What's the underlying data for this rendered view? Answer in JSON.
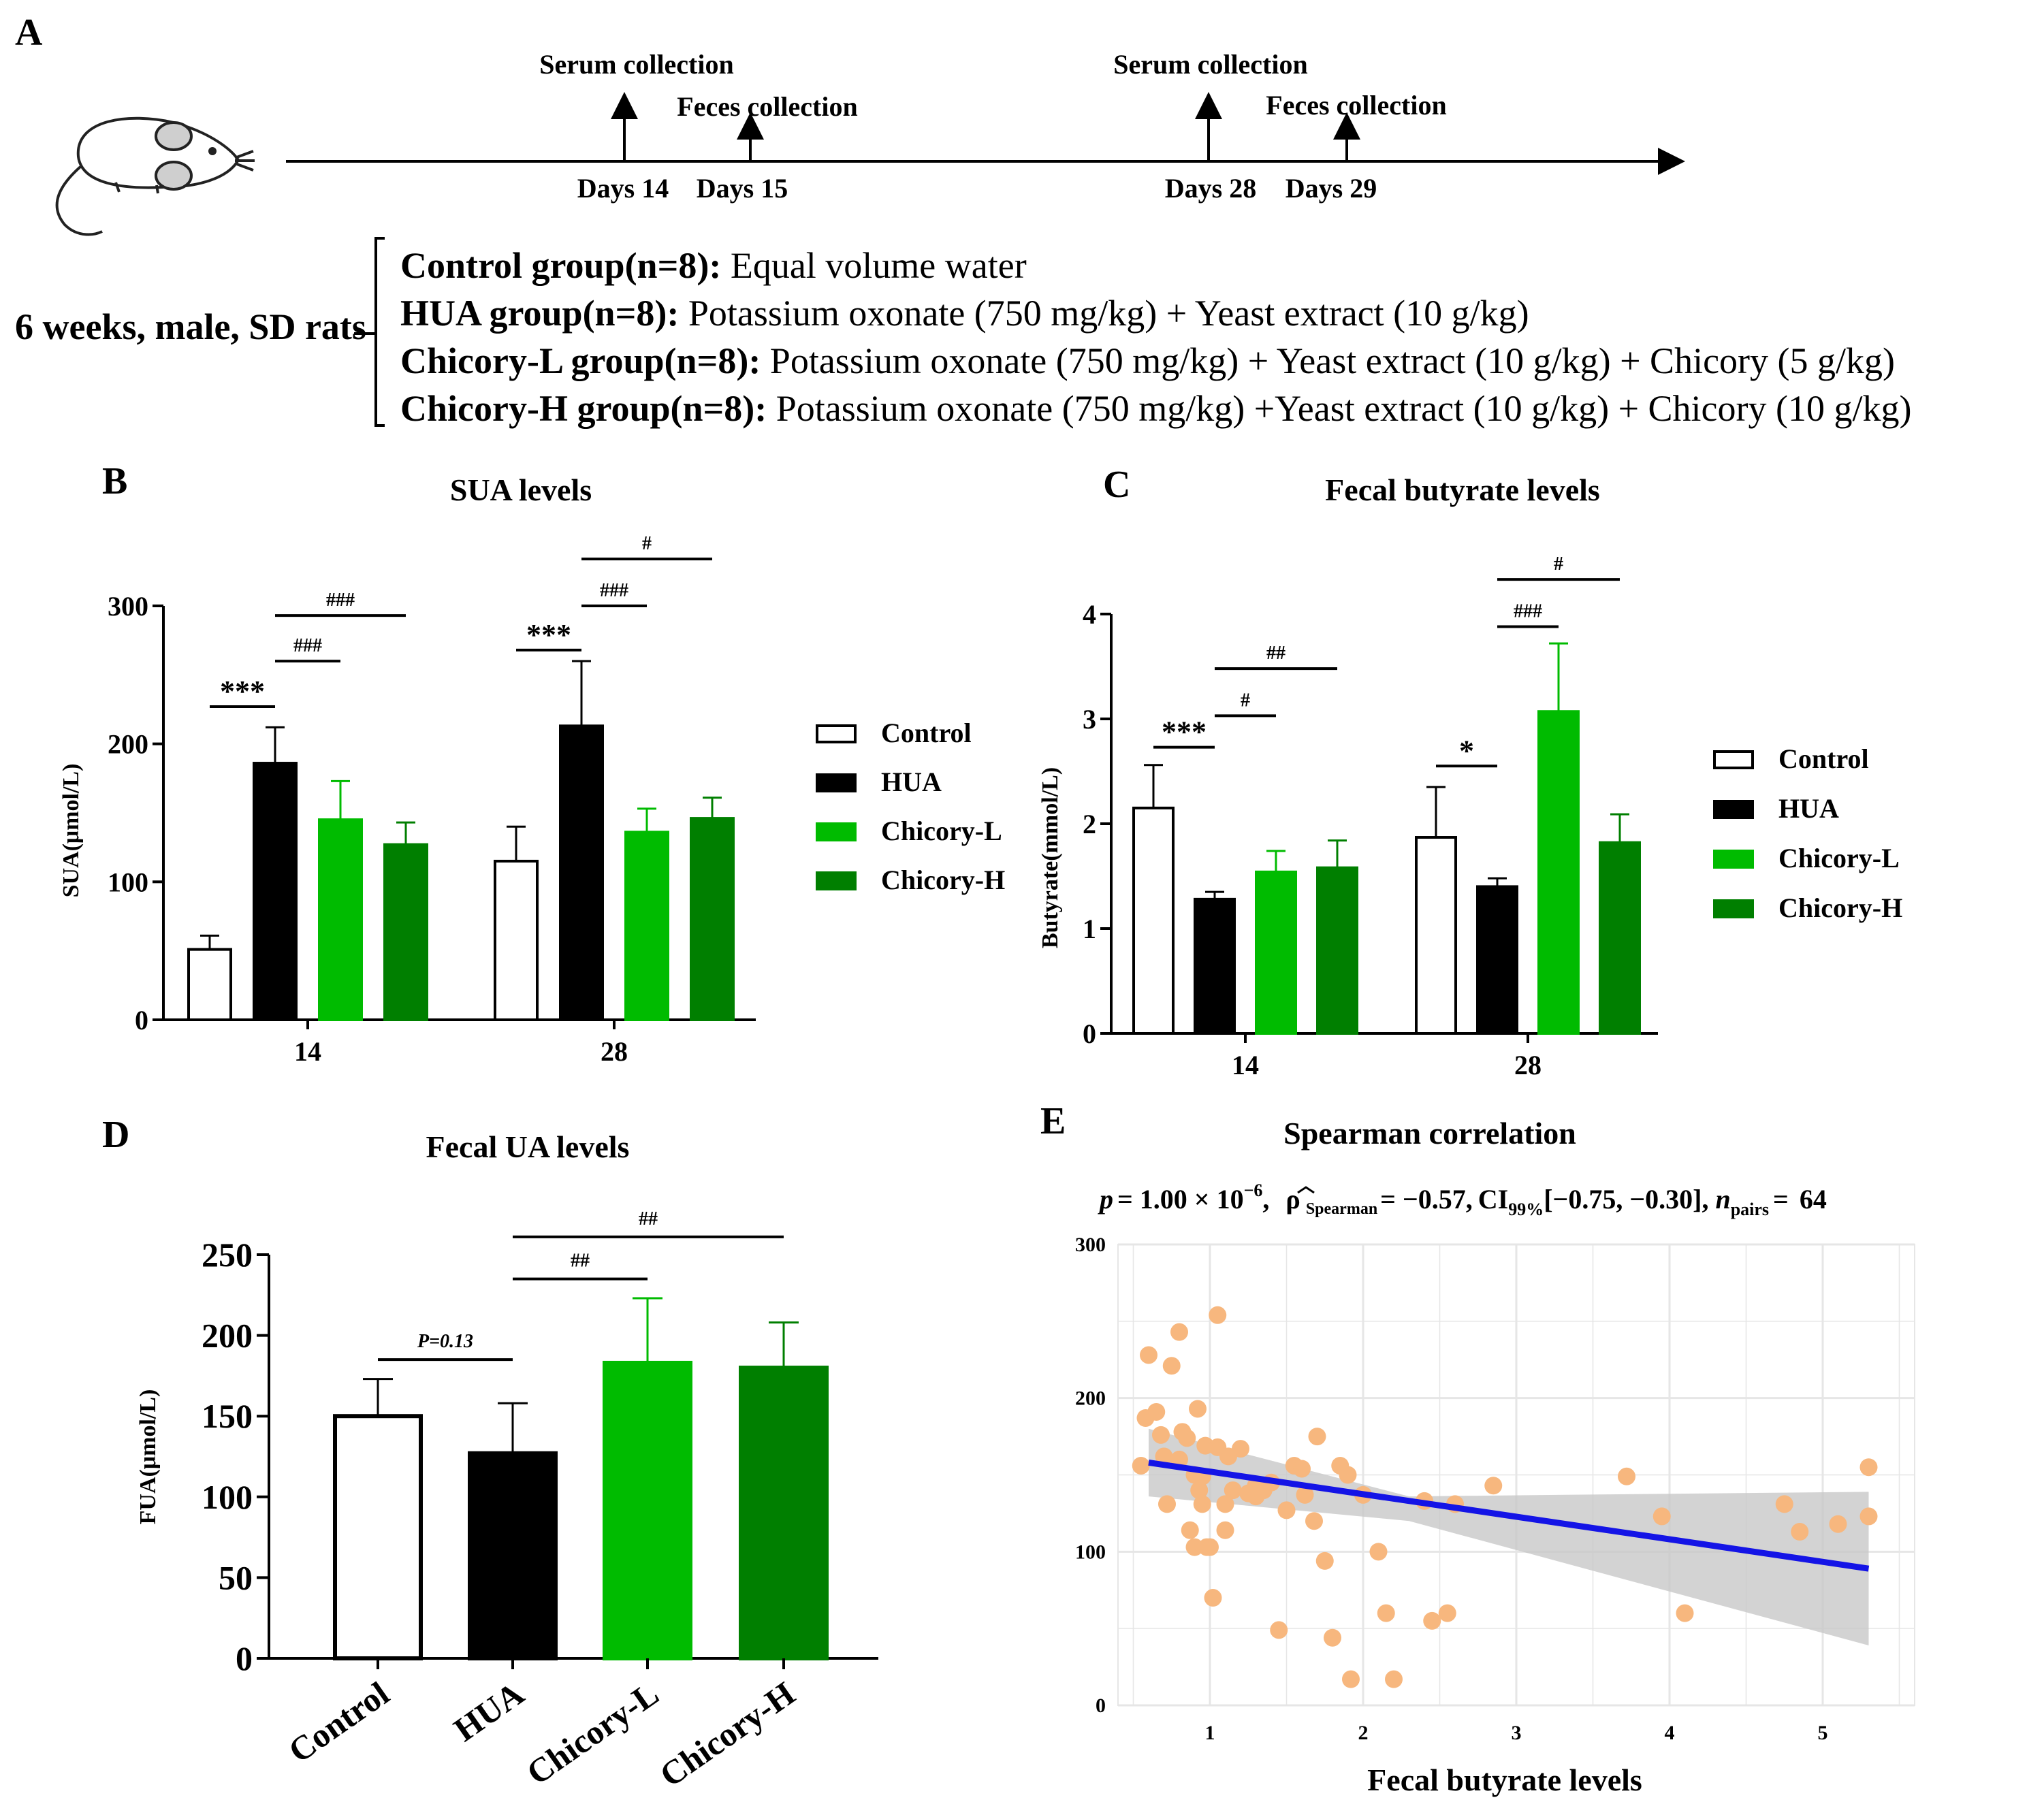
{
  "panelA": {
    "label": "A",
    "timeline": {
      "serum1": "Serum collection",
      "feces1": "Feces collection",
      "serum2": "Serum collection",
      "feces2": "Feces collection",
      "day14": "Days 14",
      "day15": "Days 15",
      "day28": "Days 28",
      "day29": "Days 29"
    },
    "animals": "6 weeks, male, SD rats",
    "groups": [
      {
        "name": "Control group(n=8):",
        "desc": " Equal volume water"
      },
      {
        "name": "HUA group(n=8):",
        "desc": " Potassium oxonate (750 mg/kg) + Yeast extract (10 g/kg)"
      },
      {
        "name": "Chicory-L group(n=8):",
        "desc": " Potassium oxonate (750 mg/kg) + Yeast extract (10 g/kg) + Chicory (5 g/kg)"
      },
      {
        "name": "Chicory-H group(n=8):",
        "desc": " Potassium oxonate (750 mg/kg) +Yeast extract (10 g/kg) + Chicory (10 g/kg)"
      }
    ]
  },
  "colors": {
    "Control": "#ffffff",
    "HUA": "#000000",
    "Chicory-L": "#00bb00",
    "Chicory-H": "#007f00",
    "scatter_point": "#f7b77e",
    "fit_line": "#1414e6",
    "ci_band": "#c8c8c8",
    "grid": "#e6e6e6"
  },
  "chart_data": [
    {
      "id": "B",
      "label": "B",
      "type": "bar",
      "title": "SUA levels",
      "ylabel": "SUA(μmol/L)",
      "ylim": [
        0,
        300
      ],
      "yticks": [
        "0",
        "100",
        "200",
        "300"
      ],
      "categories": [
        "14",
        "28"
      ],
      "series": [
        {
          "name": "Control",
          "values": [
            51,
            115
          ],
          "errors": [
            10,
            25
          ]
        },
        {
          "name": "HUA",
          "values": [
            186,
            213
          ],
          "errors": [
            26,
            47
          ]
        },
        {
          "name": "Chicory-L",
          "values": [
            145,
            136
          ],
          "errors": [
            28,
            17
          ]
        },
        {
          "name": "Chicory-H",
          "values": [
            127,
            146
          ],
          "errors": [
            16,
            15
          ]
        }
      ],
      "legend": [
        "Control",
        "HUA",
        "Chicory-L",
        "Chicory-H"
      ],
      "annotations": [
        {
          "text": "***",
          "from": [
            0,
            0
          ],
          "to": [
            0,
            1
          ],
          "y": 227
        },
        {
          "text": "###",
          "from": [
            0,
            1
          ],
          "to": [
            0,
            2
          ],
          "y": 260
        },
        {
          "text": "###",
          "from": [
            0,
            1
          ],
          "to": [
            0,
            3
          ],
          "y": 293
        },
        {
          "text": "***",
          "from": [
            1,
            0
          ],
          "to": [
            1,
            1
          ],
          "y": 268
        },
        {
          "text": "###",
          "from": [
            1,
            1
          ],
          "to": [
            1,
            2
          ],
          "y": 300
        },
        {
          "text": "#",
          "from": [
            1,
            1
          ],
          "to": [
            1,
            3
          ],
          "y": 334
        }
      ]
    },
    {
      "id": "C",
      "label": "C",
      "type": "bar",
      "title": "Fecal butyrate levels",
      "ylabel": "Butyrate(mmol/L)",
      "ylim": [
        0,
        4
      ],
      "yticks": [
        "0",
        "1",
        "2",
        "3",
        "4"
      ],
      "categories": [
        "14",
        "28"
      ],
      "series": [
        {
          "name": "Control",
          "values": [
            2.15,
            1.87
          ],
          "errors": [
            0.41,
            0.48
          ]
        },
        {
          "name": "HUA",
          "values": [
            1.28,
            1.4
          ],
          "errors": [
            0.07,
            0.08
          ]
        },
        {
          "name": "Chicory-L",
          "values": [
            1.54,
            3.07
          ],
          "errors": [
            0.2,
            0.65
          ]
        },
        {
          "name": "Chicory-H",
          "values": [
            1.58,
            1.82
          ],
          "errors": [
            0.26,
            0.27
          ]
        }
      ],
      "legend": [
        "Control",
        "HUA",
        "Chicory-L",
        "Chicory-H"
      ],
      "annotations": [
        {
          "text": "***",
          "from": [
            0,
            0
          ],
          "to": [
            0,
            1
          ],
          "y": 2.73
        },
        {
          "text": "#",
          "from": [
            0,
            1
          ],
          "to": [
            0,
            2
          ],
          "y": 3.03
        },
        {
          "text": "##",
          "from": [
            0,
            1
          ],
          "to": [
            0,
            3
          ],
          "y": 3.48
        },
        {
          "text": "*",
          "from": [
            1,
            0
          ],
          "to": [
            1,
            1
          ],
          "y": 2.55
        },
        {
          "text": "###",
          "from": [
            1,
            1
          ],
          "to": [
            1,
            2
          ],
          "y": 3.88
        },
        {
          "text": "#",
          "from": [
            1,
            1
          ],
          "to": [
            1,
            3
          ],
          "y": 4.33
        }
      ]
    },
    {
      "id": "D",
      "label": "D",
      "type": "bar",
      "title": "Fecal UA levels",
      "ylabel": "FUA(μmol/L)",
      "ylim": [
        0,
        250
      ],
      "yticks": [
        "0",
        "50",
        "100",
        "150",
        "200",
        "250"
      ],
      "categories": [
        "Control",
        "HUA",
        "Chicory-L",
        "Chicory-H"
      ],
      "values": [
        150,
        127,
        183,
        180
      ],
      "errors": [
        23,
        31,
        40,
        28
      ],
      "annotations": [
        {
          "text": "P=0.13",
          "from": 0,
          "to": 1,
          "y": 185
        },
        {
          "text": "##",
          "from": 1,
          "to": 2,
          "y": 235
        },
        {
          "text": "##",
          "from": 1,
          "to": 3,
          "y": 261
        }
      ]
    },
    {
      "id": "E",
      "label": "E",
      "type": "scatter",
      "title": "Spearman correlation",
      "xlabel": "Fecal butyrate levels",
      "stats": {
        "p": "p",
        "p_eq": "= 1.00 × 10",
        "p_exp": "−6",
        "rho": "ρ",
        "rho_sub": "Spearman",
        "rho_eq": "= −0.57,",
        "ci": "CI",
        "ci_sub": "99%",
        "ci_val": "[−0.75, −0.30]",
        "n": "n",
        "n_sub": "pairs",
        "n_eq": "=",
        "n_val": "64"
      },
      "xlim": [
        0.4,
        5.6
      ],
      "ylim": [
        0,
        300
      ],
      "xticks": [
        "1",
        "2",
        "3",
        "4",
        "5"
      ],
      "yticks": [
        "0",
        "100",
        "200",
        "300"
      ],
      "fit": {
        "x": [
          0.6,
          5.3
        ],
        "y": [
          158,
          89
        ]
      },
      "points": [
        [
          0.55,
          156
        ],
        [
          0.58,
          187
        ],
        [
          0.6,
          228
        ],
        [
          0.65,
          191
        ],
        [
          0.68,
          176
        ],
        [
          0.7,
          162
        ],
        [
          0.75,
          221
        ],
        [
          0.72,
          131
        ],
        [
          0.8,
          243
        ],
        [
          0.8,
          160
        ],
        [
          0.82,
          178
        ],
        [
          0.85,
          174
        ],
        [
          0.87,
          114
        ],
        [
          0.9,
          150
        ],
        [
          0.9,
          103
        ],
        [
          0.92,
          193
        ],
        [
          0.93,
          140
        ],
        [
          0.95,
          131
        ],
        [
          0.97,
          169
        ],
        [
          0.98,
          103
        ],
        [
          1.0,
          103
        ],
        [
          1.02,
          70
        ],
        [
          1.05,
          254
        ],
        [
          1.05,
          168
        ],
        [
          1.1,
          114
        ],
        [
          1.1,
          131
        ],
        [
          1.12,
          162
        ],
        [
          1.2,
          167
        ],
        [
          1.25,
          138
        ],
        [
          1.3,
          143
        ],
        [
          1.35,
          140
        ],
        [
          1.4,
          145
        ],
        [
          1.45,
          49
        ],
        [
          1.5,
          127
        ],
        [
          1.55,
          156
        ],
        [
          1.6,
          154
        ],
        [
          1.62,
          137
        ],
        [
          1.68,
          120
        ],
        [
          1.7,
          175
        ],
        [
          1.75,
          94
        ],
        [
          1.8,
          44
        ],
        [
          1.85,
          156
        ],
        [
          1.9,
          150
        ],
        [
          1.92,
          17
        ],
        [
          2.0,
          137
        ],
        [
          2.1,
          100
        ],
        [
          2.15,
          60
        ],
        [
          2.2,
          17
        ],
        [
          2.4,
          133
        ],
        [
          2.45,
          55
        ],
        [
          2.55,
          60
        ],
        [
          2.6,
          131
        ],
        [
          2.85,
          143
        ],
        [
          3.72,
          149
        ],
        [
          3.95,
          123
        ],
        [
          4.1,
          60
        ],
        [
          4.75,
          131
        ],
        [
          4.85,
          113
        ],
        [
          5.1,
          118
        ],
        [
          5.3,
          155
        ],
        [
          5.3,
          123
        ],
        [
          1.3,
          136
        ],
        [
          1.15,
          140
        ],
        [
          0.95,
          149
        ]
      ]
    }
  ]
}
